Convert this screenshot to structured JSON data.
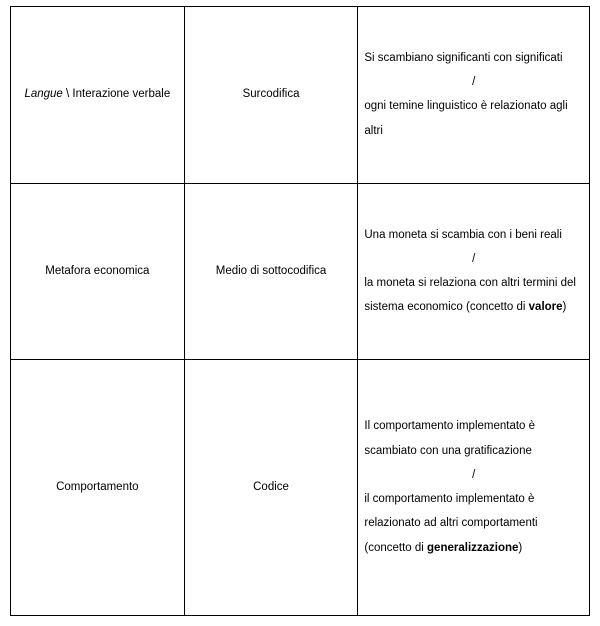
{
  "table": {
    "col_widths_pct": [
      30,
      30,
      40
    ],
    "rows": [
      {
        "col1": {
          "segments": [
            {
              "text": "Langue",
              "italic": true
            },
            {
              "text": " \\ Interazione verbale",
              "italic": false
            }
          ]
        },
        "col2": "Surcodifica",
        "col3": {
          "top": "Si scambiano significanti con significati",
          "sep": "/",
          "bottom_segments": [
            {
              "text": "ogni temine linguistico è relazionato agli altri"
            }
          ]
        }
      },
      {
        "col1": {
          "segments": [
            {
              "text": "Metafora economica"
            }
          ]
        },
        "col2": "Medio di sottocodifica",
        "col3": {
          "top": "Una moneta si scambia con i beni reali",
          "sep": "/",
          "bottom_segments": [
            {
              "text": "la moneta si relaziona con altri termini del sistema economico (concetto di "
            },
            {
              "text": "valore",
              "bold": true
            },
            {
              "text": ")"
            }
          ]
        }
      },
      {
        "col1": {
          "segments": [
            {
              "text": "Comportamento"
            }
          ]
        },
        "col2": "Codice",
        "col3": {
          "top": "Il comportamento implementato è scambiato con una gratificazione",
          "sep": "/",
          "bottom_segments": [
            {
              "text": "il comportamento implementato è relazionato ad altri comportamenti (concetto di "
            },
            {
              "text": "generalizzazione",
              "bold": true
            },
            {
              "text": ")"
            }
          ]
        }
      }
    ]
  },
  "styles": {
    "font_family": "Arial",
    "font_size_pt": 9,
    "border_color": "#000000",
    "background_color": "#ffffff",
    "text_color": "#000000"
  }
}
